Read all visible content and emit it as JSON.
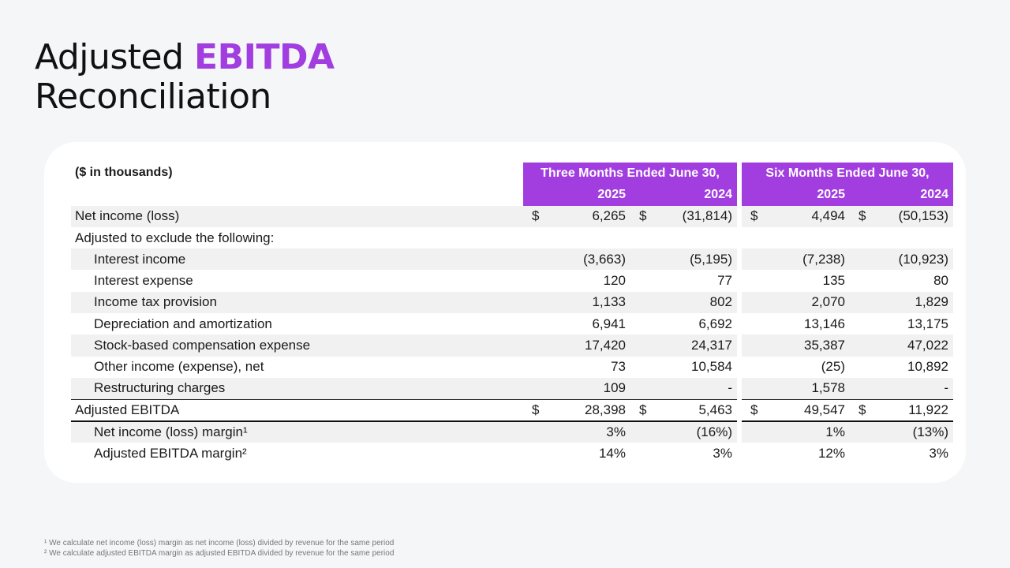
{
  "title": {
    "line1_plain": "Adjusted ",
    "line1_accent": "EBITDA",
    "line2": "Reconciliation"
  },
  "table": {
    "units_label": "($ in thousands)",
    "period_headers": [
      "Three Months Ended June 30,",
      "Six Months Ended June 30,"
    ],
    "year_headers": [
      "2025",
      "2024",
      "2025",
      "2024"
    ],
    "currency_symbol": "$",
    "rows": [
      {
        "label": "Net income (loss)",
        "values": [
          "6,265",
          "(31,814)",
          "4,494",
          "(50,153)"
        ]
      },
      {
        "label": "Adjusted to exclude the following:",
        "values": [
          "",
          "",
          "",
          ""
        ]
      },
      {
        "label": "Interest income",
        "values": [
          "(3,663)",
          "(5,195)",
          "(7,238)",
          "(10,923)"
        ]
      },
      {
        "label": "Interest expense",
        "values": [
          "120",
          "77",
          "135",
          "80"
        ]
      },
      {
        "label": "Income tax provision",
        "values": [
          "1,133",
          "802",
          "2,070",
          "1,829"
        ]
      },
      {
        "label": "Depreciation and amortization",
        "values": [
          "6,941",
          "6,692",
          "13,146",
          "13,175"
        ]
      },
      {
        "label": "Stock-based compensation expense",
        "values": [
          "17,420",
          "24,317",
          "35,387",
          "47,022"
        ]
      },
      {
        "label": "Other income (expense), net",
        "values": [
          "73",
          "10,584",
          "(25)",
          "10,892"
        ]
      },
      {
        "label": "Restructuring charges",
        "values": [
          "109",
          "-",
          "1,578",
          "-"
        ]
      },
      {
        "label": "Adjusted EBITDA",
        "values": [
          "28,398",
          "5,463",
          "49,547",
          "11,922"
        ]
      },
      {
        "label": "Net income (loss) margin¹",
        "values": [
          "3%",
          "(16%)",
          "1%",
          "(13%)"
        ]
      },
      {
        "label": "Adjusted EBITDA margin²",
        "values": [
          "14%",
          "3%",
          "12%",
          "3%"
        ]
      }
    ]
  },
  "footnotes": [
    "¹ We calculate net income (loss) margin as net income (loss) divided by revenue for the same period",
    "² We calculate adjusted EBITDA margin as adjusted EBITDA divided by revenue for the same period"
  ],
  "colors": {
    "accent": "#a23ee0",
    "row_shade": "#f1f1f2",
    "background": "#f5f6f8"
  }
}
